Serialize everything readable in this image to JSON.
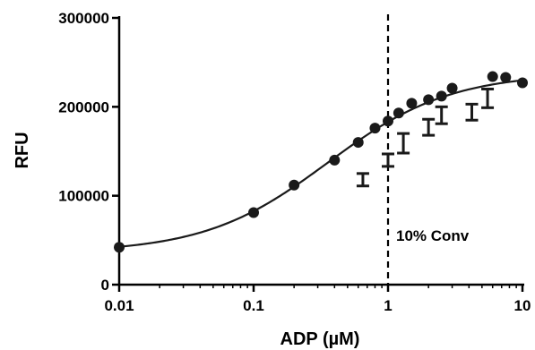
{
  "chart_data": {
    "type": "scatter",
    "title": "",
    "xlabel": "ADP (µM)",
    "ylabel": "RFU",
    "xscale": "log",
    "xlim": [
      0.01,
      10
    ],
    "ylim": [
      0,
      300000
    ],
    "x_ticks": [
      0.01,
      0.1,
      1,
      10
    ],
    "x_tick_labels": [
      "0.01",
      "0.1",
      "1",
      "10"
    ],
    "y_ticks": [
      0,
      100000,
      200000,
      300000
    ],
    "y_tick_labels": [
      "0",
      "100000",
      "200000",
      "300000"
    ],
    "grid": false,
    "legend": "none",
    "series": [
      {
        "marker": "filled-circle",
        "color": "#1a1a1a",
        "x": [
          0.01,
          0.1,
          0.2,
          0.4,
          0.6,
          0.8,
          1.0,
          1.2,
          1.5,
          2.0,
          2.5,
          3.0,
          6.0,
          7.5,
          10.0
        ],
        "y": [
          42000,
          81000,
          112000,
          140000,
          160000,
          176000,
          184000,
          193000,
          204000,
          208000,
          212000,
          221000,
          234000,
          233000,
          227000
        ]
      },
      {
        "marker": "error-bar",
        "color": "#1a1a1a",
        "x": [
          0.65,
          1.0,
          1.3,
          2.0,
          2.5,
          4.2,
          5.5
        ],
        "low": [
          111000,
          133000,
          148000,
          168000,
          181000,
          185000,
          199000
        ],
        "high": [
          125000,
          147000,
          170000,
          186000,
          200000,
          203000,
          220000
        ]
      }
    ],
    "fit_curve": {
      "type": "sigmoid-log",
      "bottom": 36000,
      "top": 238000,
      "logEC50": -0.45,
      "hill": 0.95,
      "color": "#1a1a1a"
    },
    "vline": {
      "x": 1,
      "style": "dashed",
      "label": "10% Conv"
    }
  }
}
